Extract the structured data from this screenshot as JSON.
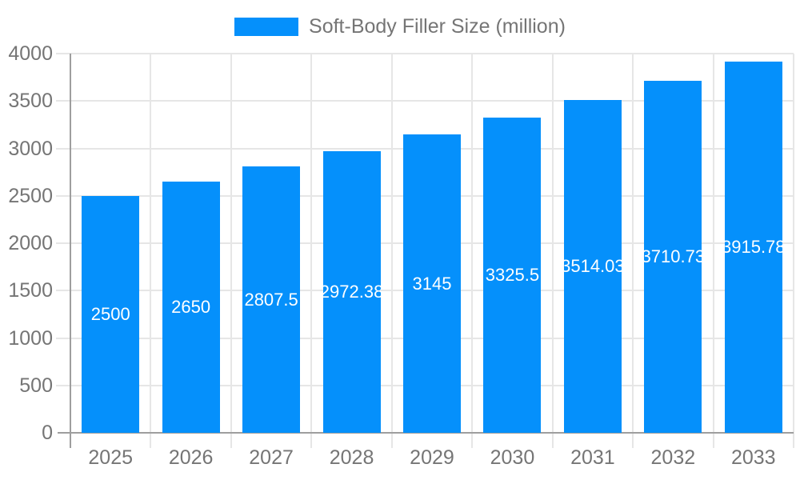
{
  "legend": {
    "label": "Soft-Body Filler Size (million)"
  },
  "chart_data": {
    "type": "bar",
    "title": "",
    "series_name": "Soft-Body Filler Size (million)",
    "categories": [
      "2025",
      "2026",
      "2027",
      "2028",
      "2029",
      "2030",
      "2031",
      "2032",
      "2033"
    ],
    "values": [
      2500,
      2650,
      2807.5,
      2972.38,
      3145,
      3325.5,
      3514.03,
      3710.73,
      3915.78
    ],
    "data_labels": [
      "2500",
      "2650",
      "2807.5",
      "2972.38",
      "3145",
      "3325.5",
      "3514.03",
      "3710.73",
      "3915.78"
    ],
    "xlabel": "",
    "ylabel": "",
    "ylim": [
      0,
      4000
    ],
    "ytick_step": 500,
    "ytick_labels": [
      "0",
      "500",
      "1000",
      "1500",
      "2000",
      "2500",
      "3000",
      "3500",
      "4000"
    ],
    "grid": true,
    "legend_position": "top-center",
    "colors": {
      "bar": "#0590fb",
      "data_label": "#ffffff",
      "axis_text": "#757575",
      "gridline": "#e6e6e6",
      "axis_line": "#9e9e9e",
      "background": "#ffffff"
    }
  }
}
